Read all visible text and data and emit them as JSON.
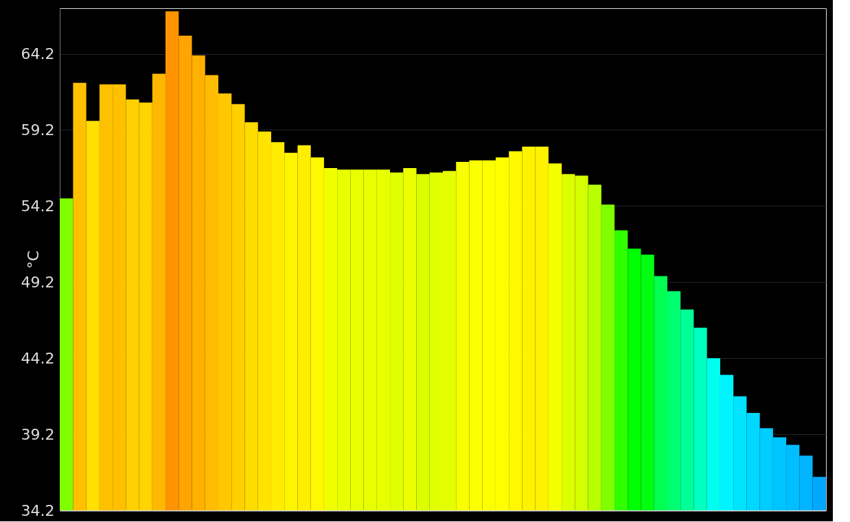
{
  "chart_data": {
    "type": "bar",
    "ylabel": "°C",
    "categories": [
      null,
      null,
      null,
      null,
      null,
      null,
      null,
      null,
      null,
      null,
      null,
      null,
      null,
      null,
      null,
      null,
      null,
      null,
      null,
      null,
      null,
      null,
      null,
      null,
      null,
      null,
      null,
      null,
      null,
      null,
      null,
      null,
      null,
      null,
      null,
      null,
      null,
      null,
      null,
      null,
      null,
      null,
      null,
      null,
      null,
      null,
      null,
      null,
      null,
      null,
      null,
      null,
      null,
      null,
      null,
      null,
      null,
      null
    ],
    "values": [
      54.7,
      62.3,
      59.8,
      62.2,
      62.2,
      61.2,
      61.0,
      62.9,
      67.0,
      65.4,
      64.1,
      62.8,
      61.6,
      60.9,
      59.7,
      59.1,
      58.4,
      57.7,
      58.2,
      57.4,
      56.7,
      56.6,
      56.6,
      56.6,
      56.6,
      56.4,
      56.7,
      56.3,
      56.4,
      56.5,
      57.1,
      57.2,
      57.2,
      57.4,
      57.8,
      58.1,
      58.1,
      57.0,
      56.3,
      56.2,
      55.6,
      54.3,
      52.6,
      51.4,
      51.0,
      49.6,
      48.6,
      47.4,
      46.2,
      44.2,
      43.1,
      41.7,
      40.6,
      39.6,
      39.0,
      38.5,
      37.8,
      36.4
    ],
    "colors": [
      "#80ff00",
      "#ffc000",
      "#ffe000",
      "#ffc000",
      "#ffc000",
      "#ffd000",
      "#ffd400",
      "#ffb800",
      "#ff9400",
      "#ffa400",
      "#ffb000",
      "#ffbc00",
      "#ffc800",
      "#ffd000",
      "#ffdc00",
      "#ffe400",
      "#ffec00",
      "#fff400",
      "#ffee00",
      "#fff800",
      "#f0ff00",
      "#e8ff00",
      "#e8ff00",
      "#e8ff00",
      "#e8ff00",
      "#e0ff00",
      "#ecff00",
      "#dcff00",
      "#e0ff00",
      "#e4ff00",
      "#f8ff00",
      "#fcff00",
      "#fcff00",
      "#ffff00",
      "#fff800",
      "#fff200",
      "#fff200",
      "#f4ff00",
      "#dcff00",
      "#d4ff00",
      "#b8ff00",
      "#80ff00",
      "#30ff00",
      "#00ff00",
      "#00ff10",
      "#00ff50",
      "#00ff70",
      "#00ff98",
      "#00ffc0",
      "#00fff0",
      "#00f4ff",
      "#00e4ff",
      "#00d8ff",
      "#00ccff",
      "#00c4ff",
      "#00beff",
      "#00b4ff",
      "#00a8ff"
    ],
    "ylim": [
      34.2,
      67.2
    ],
    "yticks": [
      34.2,
      39.2,
      44.2,
      49.2,
      54.2,
      59.2,
      64.2
    ],
    "grid": "y",
    "tick_labels": "y",
    "legend": false
  }
}
